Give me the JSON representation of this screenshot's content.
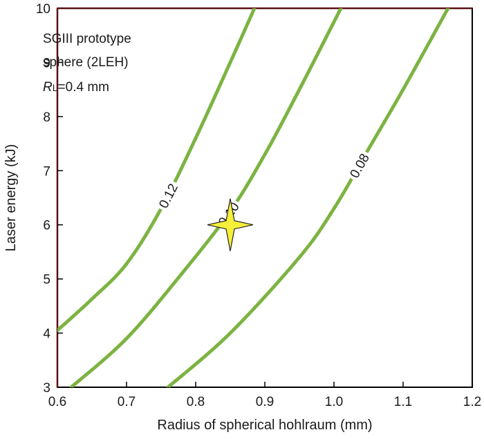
{
  "chart_data": {
    "type": "line",
    "title": "",
    "xlabel": "Radius of spherical hohlraum (mm)",
    "ylabel": "Laser energy (kJ)",
    "xlim": [
      0.6,
      1.2
    ],
    "ylim": [
      3,
      10
    ],
    "x_ticks": [
      "0.6",
      "0.7",
      "0.8",
      "0.9",
      "1.0",
      "1.1",
      "1.2"
    ],
    "y_ticks": [
      "3",
      "4",
      "5",
      "6",
      "7",
      "8",
      "9",
      "10"
    ],
    "grid": false,
    "line_color": "#7cb342",
    "marker_color": "#f5ef3a",
    "annotation": {
      "line1": "SGIII prototype",
      "line2": "sphere (2LEH)",
      "r_symbol": "R",
      "r_sub": "L",
      "r_value": "=0.4 mm"
    },
    "series": [
      {
        "label": "0.12",
        "x": [
          0.6,
          0.65,
          0.7,
          0.75,
          0.8,
          0.85,
          0.885
        ],
        "y": [
          4.05,
          4.63,
          5.28,
          6.3,
          7.6,
          9.0,
          10.0
        ]
      },
      {
        "label": "0.10",
        "x": [
          0.62,
          0.7,
          0.78,
          0.85,
          0.9,
          0.95,
          1.01
        ],
        "y": [
          3.0,
          3.9,
          5.1,
          6.25,
          7.3,
          8.5,
          10.0
        ]
      },
      {
        "label": "0.08",
        "x": [
          0.76,
          0.85,
          0.95,
          1.0,
          1.05,
          1.1,
          1.165
        ],
        "y": [
          3.0,
          4.0,
          5.4,
          6.3,
          7.4,
          8.5,
          10.0
        ]
      }
    ],
    "marker": {
      "x": 0.85,
      "y": 6.0,
      "shape": "four-point-star"
    }
  }
}
